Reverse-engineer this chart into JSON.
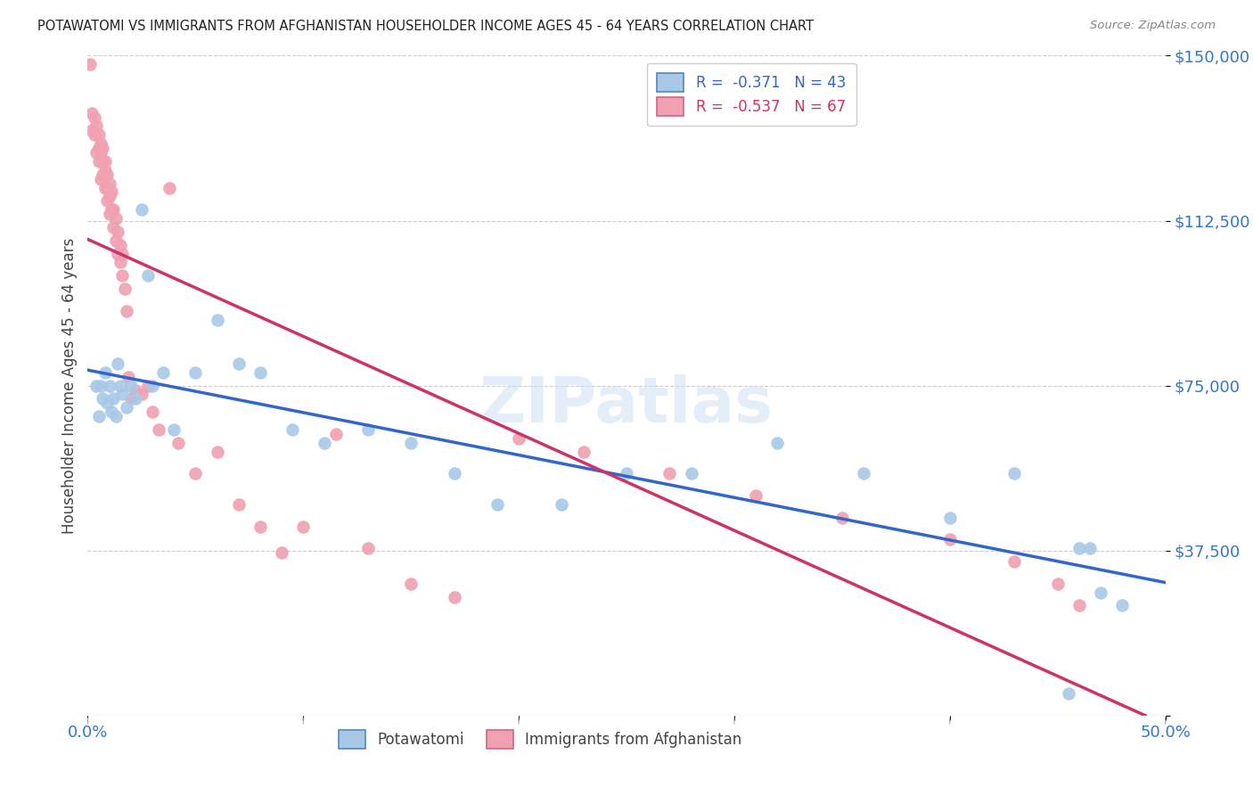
{
  "title": "POTAWATOMI VS IMMIGRANTS FROM AFGHANISTAN HOUSEHOLDER INCOME AGES 45 - 64 YEARS CORRELATION CHART",
  "source": "Source: ZipAtlas.com",
  "ylabel": "Householder Income Ages 45 - 64 years",
  "xlim": [
    0.0,
    0.5
  ],
  "ylim": [
    0,
    150000
  ],
  "yticks": [
    0,
    37500,
    75000,
    112500,
    150000
  ],
  "ytick_labels": [
    "",
    "$37,500",
    "$75,000",
    "$112,500",
    "$150,000"
  ],
  "xticks": [
    0.0,
    0.1,
    0.2,
    0.3,
    0.4,
    0.5
  ],
  "xtick_labels": [
    "0.0%",
    "",
    "",
    "",
    "",
    "50.0%"
  ],
  "legend_blue_r": "-0.371",
  "legend_blue_n": "43",
  "legend_pink_r": "-0.537",
  "legend_pink_n": "67",
  "blue_color": "#a8c8e8",
  "pink_color": "#f0a0b0",
  "blue_line_color": "#3366cc",
  "pink_line_color": "#cc3366",
  "blue_scatter_x": [
    0.004,
    0.005,
    0.006,
    0.007,
    0.008,
    0.009,
    0.01,
    0.011,
    0.012,
    0.013,
    0.014,
    0.015,
    0.016,
    0.018,
    0.02,
    0.022,
    0.025,
    0.028,
    0.03,
    0.035,
    0.04,
    0.05,
    0.06,
    0.07,
    0.08,
    0.095,
    0.11,
    0.13,
    0.15,
    0.17,
    0.19,
    0.22,
    0.25,
    0.28,
    0.32,
    0.36,
    0.4,
    0.43,
    0.455,
    0.46,
    0.465,
    0.47,
    0.48
  ],
  "blue_scatter_y": [
    75000,
    68000,
    75000,
    72000,
    78000,
    71000,
    75000,
    69000,
    72000,
    68000,
    80000,
    75000,
    73000,
    70000,
    75000,
    72000,
    115000,
    100000,
    75000,
    78000,
    65000,
    78000,
    90000,
    80000,
    78000,
    65000,
    62000,
    65000,
    62000,
    55000,
    48000,
    48000,
    55000,
    55000,
    62000,
    55000,
    45000,
    55000,
    5000,
    38000,
    38000,
    28000,
    25000
  ],
  "pink_scatter_x": [
    0.001,
    0.002,
    0.002,
    0.003,
    0.003,
    0.004,
    0.004,
    0.005,
    0.005,
    0.005,
    0.006,
    0.006,
    0.006,
    0.007,
    0.007,
    0.007,
    0.008,
    0.008,
    0.008,
    0.009,
    0.009,
    0.009,
    0.01,
    0.01,
    0.01,
    0.011,
    0.011,
    0.012,
    0.012,
    0.013,
    0.013,
    0.014,
    0.014,
    0.015,
    0.015,
    0.016,
    0.016,
    0.017,
    0.018,
    0.019,
    0.02,
    0.022,
    0.025,
    0.028,
    0.03,
    0.033,
    0.038,
    0.042,
    0.05,
    0.06,
    0.07,
    0.08,
    0.09,
    0.1,
    0.115,
    0.13,
    0.15,
    0.17,
    0.2,
    0.23,
    0.27,
    0.31,
    0.35,
    0.4,
    0.43,
    0.45,
    0.46
  ],
  "pink_scatter_y": [
    148000,
    133000,
    137000,
    132000,
    136000,
    128000,
    134000,
    129000,
    132000,
    126000,
    128000,
    130000,
    122000,
    126000,
    129000,
    123000,
    124000,
    120000,
    126000,
    120000,
    123000,
    117000,
    118000,
    121000,
    114000,
    115000,
    119000,
    111000,
    115000,
    108000,
    113000,
    105000,
    110000,
    103000,
    107000,
    100000,
    105000,
    97000,
    92000,
    77000,
    72000,
    74000,
    73000,
    75000,
    69000,
    65000,
    120000,
    62000,
    55000,
    60000,
    48000,
    43000,
    37000,
    43000,
    64000,
    38000,
    30000,
    27000,
    63000,
    60000,
    55000,
    50000,
    45000,
    40000,
    35000,
    30000,
    25000
  ]
}
